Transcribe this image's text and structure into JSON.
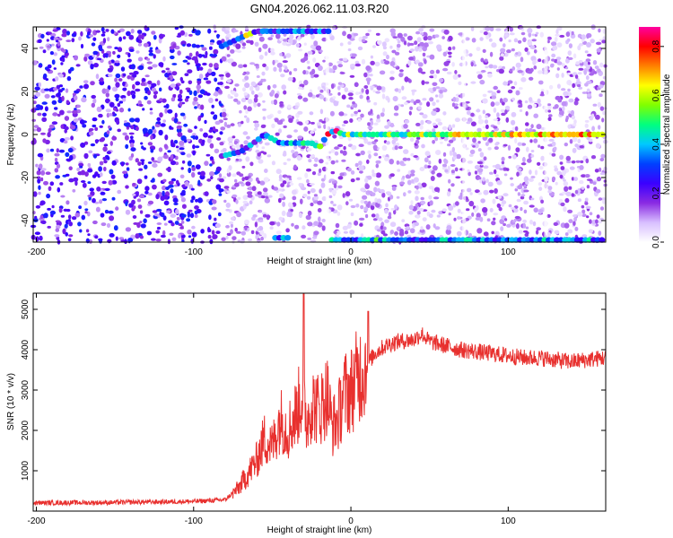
{
  "title": "GN04.2026.062.11.03.R20",
  "chart_data": [
    {
      "type": "heatmap",
      "xlabel": "Height of straight line (km)",
      "ylabel": "Frequency (Hz)",
      "xlim": [
        -202,
        162
      ],
      "ylim": [
        -50,
        50
      ],
      "x_ticks": [
        -200,
        -100,
        0,
        100
      ],
      "x_tick_labels": [
        "-200",
        "-100",
        "0",
        "100"
      ],
      "y_ticks": [
        -40,
        -20,
        0,
        20,
        40
      ],
      "y_tick_labels": [
        "-40",
        "-20",
        "0",
        "20",
        "40"
      ],
      "colorbar": {
        "label": "Normalized spectral amplitude",
        "range": [
          0,
          0.88
        ],
        "ticks": [
          0,
          0.2,
          0.4,
          0.6,
          0.8
        ],
        "tick_labels": [
          "0.0",
          "0.2",
          "0.4",
          "0.6",
          "0.8"
        ],
        "colormap": [
          "#ffffff",
          "#d8bfff",
          "#8a2be2",
          "#3b00ff",
          "#0040ff",
          "#00c8ff",
          "#00ff80",
          "#80ff00",
          "#ffff00",
          "#ff8000",
          "#ff0000",
          "#ff00a0"
        ]
      },
      "tracks": [
        {
          "x": [
            -82,
            -70,
            -60,
            -55,
            -45,
            -35,
            -25,
            -20,
            -15,
            -10,
            -5,
            0,
            50,
            100,
            160
          ],
          "y": [
            -10,
            -8,
            -3,
            0,
            -4,
            -4,
            -4,
            -6,
            0,
            2,
            0,
            0,
            0,
            0,
            0
          ],
          "amplitude": [
            0.3,
            0.3,
            0.3,
            0.35,
            0.35,
            0.4,
            0.45,
            0.45,
            0.4,
            0.45,
            0.45,
            0.45,
            0.55,
            0.65,
            0.7
          ]
        },
        {
          "x": [
            -82,
            -70,
            -60,
            -40,
            -20,
            -14
          ],
          "y": [
            41,
            45,
            48,
            48,
            48,
            48
          ],
          "amplitude": [
            0.3,
            0.3,
            0.3,
            0.3,
            0.3,
            0.3
          ]
        },
        {
          "x": [
            -48,
            -40
          ],
          "y": [
            -48,
            -48
          ],
          "amplitude": [
            0.3,
            0.3
          ]
        },
        {
          "x": [
            -12,
            160
          ],
          "y": [
            -49,
            -49
          ],
          "amplitude": [
            0.35,
            0.35
          ]
        }
      ]
    },
    {
      "type": "line",
      "xlabel": "Height of straight line (km)",
      "ylabel": "SNR (10 * v/v)",
      "xlim": [
        -202,
        162
      ],
      "ylim": [
        0,
        5400
      ],
      "x_ticks": [
        -200,
        -100,
        0,
        100
      ],
      "x_tick_labels": [
        "-200",
        "-100",
        "0",
        "100"
      ],
      "y_ticks": [
        1000,
        2000,
        3000,
        4000,
        5000
      ],
      "y_tick_labels": [
        "1000",
        "2000",
        "3000",
        "4000",
        "5000"
      ],
      "color": "#e8302e",
      "x": [
        -202,
        -180,
        -160,
        -140,
        -120,
        -100,
        -90,
        -80,
        -72,
        -65,
        -60,
        -55,
        -50,
        -45,
        -40,
        -35,
        -31,
        -28,
        -25,
        -20,
        -15,
        -12,
        -8,
        -5,
        0,
        5,
        10,
        15,
        20,
        25,
        30,
        40,
        45,
        50,
        60,
        70,
        80,
        90,
        100,
        110,
        120,
        130,
        140,
        150,
        162
      ],
      "y": [
        200,
        210,
        210,
        220,
        230,
        240,
        260,
        280,
        550,
        950,
        1250,
        1800,
        1600,
        2300,
        2000,
        2400,
        2900,
        2200,
        2700,
        2500,
        2900,
        2100,
        2300,
        2900,
        3000,
        3400,
        3600,
        3900,
        4050,
        4150,
        4200,
        4250,
        4400,
        4200,
        4100,
        4000,
        3950,
        3900,
        3850,
        3800,
        3800,
        3750,
        3700,
        3750,
        3800
      ]
    }
  ]
}
